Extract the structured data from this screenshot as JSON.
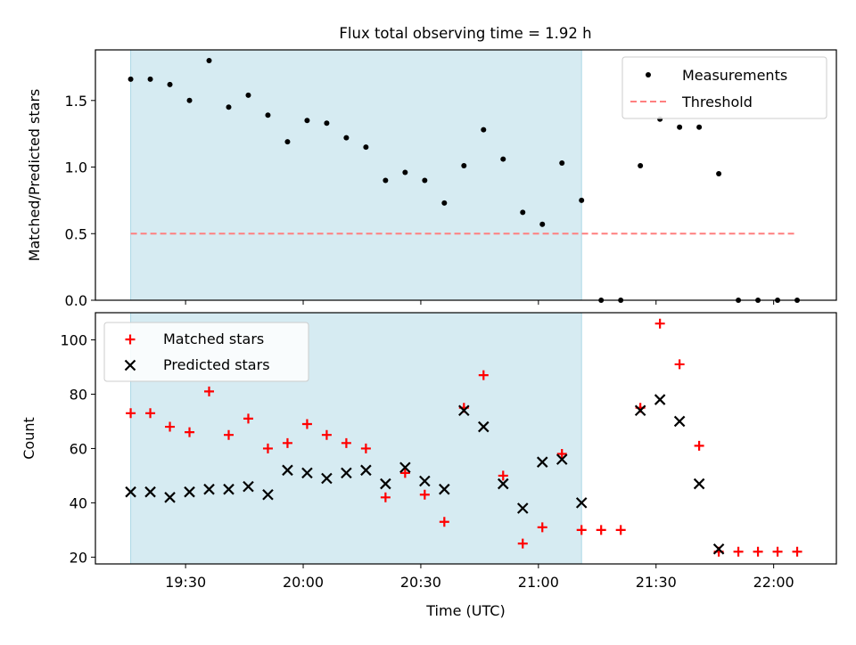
{
  "figure_title": "Flux total observing time = 1.92 h",
  "colors": {
    "shade": "#add8e6",
    "threshold": "#ff7f7f",
    "matched": "#ff0000",
    "predicted": "#000000",
    "measurement": "#000000"
  },
  "chart_data": [
    {
      "type": "scatter",
      "title": "Flux total observing time = 1.92 h",
      "xlabel": "",
      "ylabel": "Matched/Predicted stars",
      "xlim": [
        "19:07",
        "22:16"
      ],
      "ylim": [
        0,
        1.88
      ],
      "yticks": [
        "0.0",
        "0.5",
        "1.0",
        "1.5"
      ],
      "ytick_values": [
        0,
        0.5,
        1.0,
        1.5
      ],
      "grid": false,
      "legend_position": "top-right",
      "shaded_interval": [
        "19:16",
        "21:11"
      ],
      "series": [
        {
          "name": "Measurements",
          "marker": "dot",
          "x": [
            "19:16",
            "19:21",
            "19:26",
            "19:31",
            "19:36",
            "19:41",
            "19:46",
            "19:51",
            "19:56",
            "20:01",
            "20:06",
            "20:11",
            "20:16",
            "20:21",
            "20:26",
            "20:31",
            "20:36",
            "20:41",
            "20:46",
            "20:51",
            "20:56",
            "21:01",
            "21:06",
            "21:11",
            "21:16",
            "21:21",
            "21:26",
            "21:31",
            "21:36",
            "21:41",
            "21:46",
            "21:51",
            "21:56",
            "22:01",
            "22:06"
          ],
          "y": [
            1.66,
            1.66,
            1.62,
            1.5,
            1.8,
            1.45,
            1.54,
            1.39,
            1.19,
            1.35,
            1.33,
            1.22,
            1.15,
            0.9,
            0.96,
            0.9,
            0.73,
            1.01,
            1.28,
            1.06,
            0.66,
            0.57,
            1.03,
            0.75,
            0.0,
            0.0,
            1.01,
            1.36,
            1.3,
            1.3,
            0.95,
            0.0,
            0.0,
            0.0,
            0.0
          ]
        },
        {
          "name": "Threshold",
          "style": "dashed",
          "x": [
            "19:16",
            "22:06"
          ],
          "y": [
            0.5,
            0.5
          ]
        }
      ]
    },
    {
      "type": "scatter",
      "title": "",
      "xlabel": "Time (UTC)",
      "ylabel": "Count",
      "xlim": [
        "19:07",
        "22:16"
      ],
      "ylim": [
        17.5,
        110
      ],
      "xticks": [
        "19:30",
        "20:00",
        "20:30",
        "21:00",
        "21:30",
        "22:00"
      ],
      "yticks": [
        "20",
        "40",
        "60",
        "80",
        "100"
      ],
      "ytick_values": [
        20,
        40,
        60,
        80,
        100
      ],
      "grid": false,
      "legend_position": "top-left",
      "shaded_interval": [
        "19:16",
        "21:11"
      ],
      "series": [
        {
          "name": "Matched stars",
          "marker": "plus",
          "x": [
            "19:16",
            "19:21",
            "19:26",
            "19:31",
            "19:36",
            "19:41",
            "19:46",
            "19:51",
            "19:56",
            "20:01",
            "20:06",
            "20:11",
            "20:16",
            "20:21",
            "20:26",
            "20:31",
            "20:36",
            "20:41",
            "20:46",
            "20:51",
            "20:56",
            "21:01",
            "21:06",
            "21:11",
            "21:16",
            "21:21",
            "21:26",
            "21:31",
            "21:36",
            "21:41",
            "21:46",
            "21:51",
            "21:56",
            "22:01",
            "22:06"
          ],
          "y": [
            73,
            73,
            68,
            66,
            81,
            65,
            71,
            60,
            62,
            69,
            65,
            62,
            60,
            42,
            51,
            43,
            33,
            75,
            87,
            50,
            25,
            31,
            58,
            30,
            30,
            30,
            75,
            106,
            91,
            61,
            22,
            22,
            22,
            22,
            22
          ]
        },
        {
          "name": "Predicted stars",
          "marker": "x",
          "x": [
            "19:16",
            "19:21",
            "19:26",
            "19:31",
            "19:36",
            "19:41",
            "19:46",
            "19:51",
            "19:56",
            "20:01",
            "20:06",
            "20:11",
            "20:16",
            "20:21",
            "20:26",
            "20:31",
            "20:36",
            "20:41",
            "20:46",
            "20:51",
            "20:56",
            "21:01",
            "21:06",
            "21:11",
            "21:26",
            "21:31",
            "21:36",
            "21:41",
            "21:46"
          ],
          "y": [
            44,
            44,
            42,
            44,
            45,
            45,
            46,
            43,
            52,
            51,
            49,
            51,
            52,
            47,
            53,
            48,
            45,
            74,
            68,
            47,
            38,
            55,
            56,
            40,
            74,
            78,
            70,
            47,
            23
          ]
        }
      ]
    }
  ]
}
